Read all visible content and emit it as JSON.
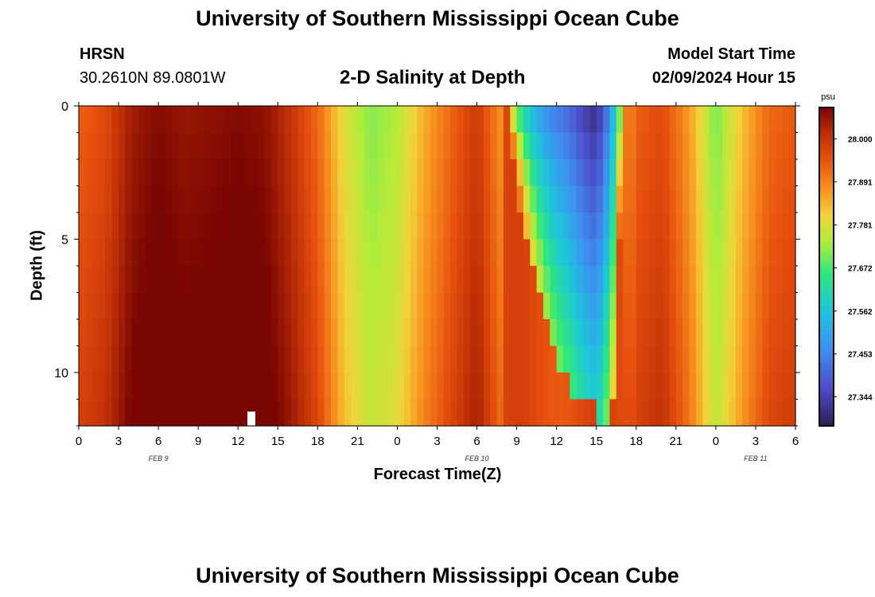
{
  "header": {
    "title": "University of Southern Mississippi Ocean Cube",
    "station": "HRSN",
    "coords": "30.2610N  89.0801W",
    "plot_title": "2-D Salinity at Depth",
    "model_start_label": "Model Start Time",
    "model_start_value": "02/09/2024 Hour 15"
  },
  "footer": {
    "title": "University of Southern Mississippi Ocean Cube"
  },
  "chart_data": {
    "type": "heatmap",
    "title": "2-D Salinity at Depth",
    "xlabel": "Forecast Time(Z)",
    "ylabel": "Depth (ft)",
    "x_tick_labels": [
      "0",
      "3",
      "6",
      "9",
      "12",
      "15",
      "18",
      "21",
      "0",
      "3",
      "6",
      "9",
      "12",
      "15",
      "18",
      "21",
      "0",
      "3",
      "6"
    ],
    "date_labels": [
      "FEB 9",
      "FEB 10",
      "FEB 11"
    ],
    "x_range_hours": [
      0,
      54
    ],
    "y_range_ft": [
      0,
      12
    ],
    "y_ticks": [
      0,
      5,
      10
    ],
    "colorbar": {
      "unit": "psu",
      "range": [
        27.27,
        28.08
      ],
      "ticks": [
        27.344,
        27.453,
        27.562,
        27.672,
        27.781,
        27.891,
        28.0
      ]
    },
    "surface_salinity_by_hour": [
      [
        0,
        27.93
      ],
      [
        2,
        27.96
      ],
      [
        4,
        28.04
      ],
      [
        6,
        28.07
      ],
      [
        8,
        28.05
      ],
      [
        10,
        28.06
      ],
      [
        12,
        28.07
      ],
      [
        14,
        28.06
      ],
      [
        16,
        28.0
      ],
      [
        18,
        27.92
      ],
      [
        20,
        27.78
      ],
      [
        22,
        27.71
      ],
      [
        24,
        27.74
      ],
      [
        26,
        27.84
      ],
      [
        28,
        27.92
      ],
      [
        30,
        27.99
      ],
      [
        32,
        27.86
      ],
      [
        33,
        27.66
      ],
      [
        34,
        27.54
      ],
      [
        35,
        27.47
      ],
      [
        36,
        27.43
      ],
      [
        37,
        27.4
      ],
      [
        38,
        27.34
      ],
      [
        39,
        27.3
      ],
      [
        40,
        27.45
      ],
      [
        41,
        27.76
      ],
      [
        42,
        27.93
      ],
      [
        44,
        27.96
      ],
      [
        46,
        27.86
      ],
      [
        48,
        27.7
      ],
      [
        50,
        27.82
      ],
      [
        52,
        27.92
      ],
      [
        54,
        27.94
      ]
    ],
    "fresh_lens_depth_ft_by_hour": [
      [
        32,
        0.2
      ],
      [
        33,
        3.0
      ],
      [
        34,
        5.5
      ],
      [
        35,
        7.5
      ],
      [
        36,
        9.5
      ],
      [
        37,
        10.8
      ],
      [
        38,
        11.2
      ],
      [
        39,
        11.5
      ],
      [
        40,
        11.5
      ],
      [
        40.5,
        11.0
      ],
      [
        41,
        0.0
      ]
    ]
  }
}
